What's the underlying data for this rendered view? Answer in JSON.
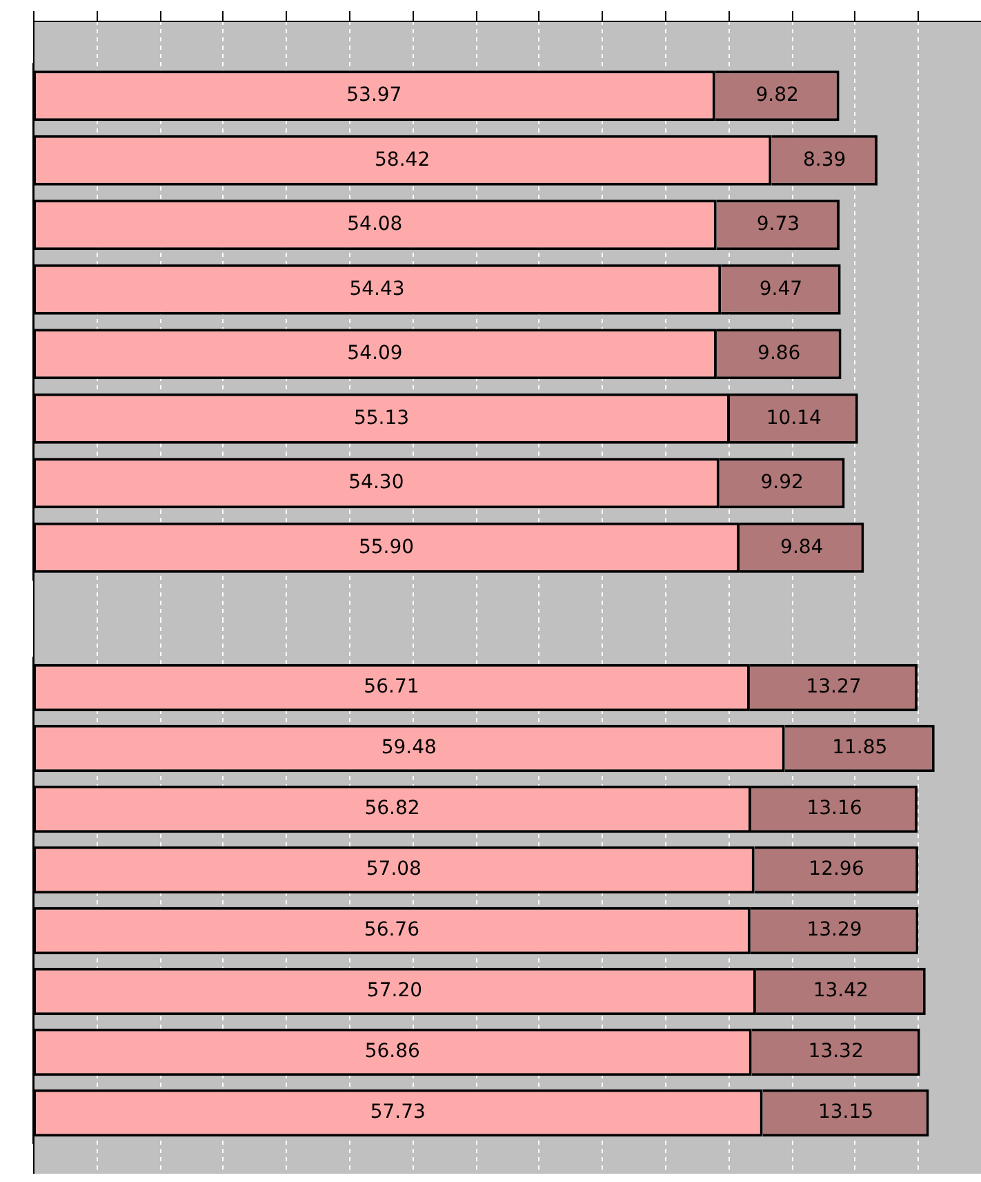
{
  "chart_data": [
    {
      "type": "bar",
      "orientation": "horizontal",
      "stacked": true,
      "categories": [
        null,
        null,
        null,
        null,
        null,
        null,
        null,
        null
      ],
      "series": [
        {
          "color": "#ffaaaa",
          "values": [
            53.97,
            58.42,
            54.08,
            54.43,
            54.09,
            55.13,
            54.3,
            55.9
          ],
          "value_labels": [
            "53.97",
            "58.42",
            "54.08",
            "54.43",
            "54.09",
            "55.13",
            "54.30",
            "55.90"
          ]
        },
        {
          "color": "#b07878",
          "values": [
            9.82,
            8.39,
            9.73,
            9.47,
            9.86,
            10.14,
            9.92,
            9.84
          ],
          "value_labels": [
            "9.82",
            "8.39",
            "9.73",
            "9.47",
            "9.86",
            "10.14",
            "9.92",
            "9.84"
          ]
        }
      ],
      "grid": "x",
      "tick_labels": false,
      "legend": false
    },
    {
      "type": "bar",
      "orientation": "horizontal",
      "stacked": true,
      "categories": [
        null,
        null,
        null,
        null,
        null,
        null,
        null,
        null
      ],
      "series": [
        {
          "color": "#ffaaaa",
          "values": [
            56.71,
            59.48,
            56.82,
            57.08,
            56.76,
            57.2,
            56.86,
            57.73
          ],
          "value_labels": [
            "56.71",
            "59.48",
            "56.82",
            "57.08",
            "56.76",
            "57.20",
            "56.86",
            "57.73"
          ]
        },
        {
          "color": "#b07878",
          "values": [
            13.27,
            11.85,
            13.16,
            12.96,
            13.29,
            13.42,
            13.32,
            13.15
          ],
          "value_labels": [
            "13.27",
            "11.85",
            "13.16",
            "12.96",
            "13.29",
            "13.42",
            "13.32",
            "13.15"
          ]
        }
      ],
      "grid": "x",
      "tick_labels": false,
      "legend": false
    }
  ]
}
